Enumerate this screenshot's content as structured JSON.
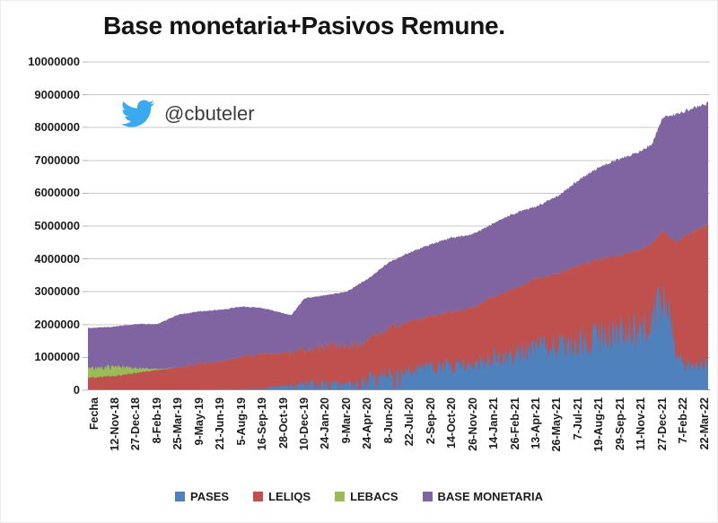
{
  "title": "Base monetaria+Pasivos Remune.",
  "watermark": {
    "icon": "twitter-bird-icon",
    "icon_color": "#3BA9EE",
    "handle": "@cbuteler"
  },
  "y_axis": {
    "labels": [
      "10000000",
      "9000000",
      "8000000",
      "7000000",
      "6000000",
      "5000000",
      "4000000",
      "3000000",
      "2000000",
      "1000000",
      "0"
    ],
    "min": 0,
    "max": 10000000,
    "step": 1000000
  },
  "x_axis": {
    "labels": [
      "Fecha",
      "12-Nov-18",
      "27-Dec-18",
      "8-Feb-19",
      "25-Mar-19",
      "9-May-19",
      "21-Jun-19",
      "5-Aug-19",
      "16-Sep-19",
      "28-Oct-19",
      "10-Dec-19",
      "24-Jan-20",
      "9-Mar-20",
      "24-Apr-20",
      "8-Jun-20",
      "22-Jul-20",
      "2-Sep-20",
      "14-Oct-20",
      "26-Nov-20",
      "14-Jan-21",
      "26-Feb-21",
      "13-Apr-21",
      "26-May-21",
      "7-Jul-21",
      "19-Aug-21",
      "29-Sep-21",
      "11-Nov-21",
      "27-Dec-21",
      "7-Feb-22",
      "22-Mar-22"
    ]
  },
  "legend": [
    {
      "label": "PASES",
      "color": "#4F81BD"
    },
    {
      "label": "LELIQS",
      "color": "#C0504D"
    },
    {
      "label": "LEBACS",
      "color": "#9BBB59"
    },
    {
      "label": "BASE MONETARIA",
      "color": "#8064A2"
    }
  ],
  "chart_data": {
    "type": "area",
    "stacked": true,
    "grid": "horizontal",
    "legend_position": "bottom",
    "ylim": [
      0,
      10000000
    ],
    "x": [
      "Fecha",
      "12-Nov-18",
      "27-Dec-18",
      "8-Feb-19",
      "25-Mar-19",
      "9-May-19",
      "21-Jun-19",
      "5-Aug-19",
      "16-Sep-19",
      "28-Oct-19",
      "10-Dec-19",
      "24-Jan-20",
      "9-Mar-20",
      "24-Apr-20",
      "8-Jun-20",
      "22-Jul-20",
      "2-Sep-20",
      "14-Oct-20",
      "26-Nov-20",
      "14-Jan-21",
      "26-Feb-21",
      "13-Apr-21",
      "26-May-21",
      "7-Jul-21",
      "19-Aug-21",
      "29-Sep-21",
      "11-Nov-21",
      "27-Dec-21",
      "7-Feb-22",
      "22-Mar-22"
    ],
    "series": [
      {
        "name": "PASES",
        "color": "#4F81BD",
        "values": [
          10000,
          10000,
          15000,
          15000,
          20000,
          20000,
          30000,
          30000,
          50000,
          150000,
          250000,
          300000,
          200000,
          450000,
          550000,
          600000,
          700000,
          750000,
          820000,
          1000000,
          1100000,
          1250000,
          1300000,
          1500000,
          1600000,
          1750000,
          1900000,
          2600000,
          800000,
          800000
        ]
      },
      {
        "name": "LELIQS",
        "color": "#C0504D",
        "values": [
          380000,
          420000,
          520000,
          600000,
          680000,
          780000,
          830000,
          1000000,
          1050000,
          1000000,
          1000000,
          1050000,
          1150000,
          1050000,
          1350000,
          1500000,
          1550000,
          1650000,
          1700000,
          1850000,
          2000000,
          2150000,
          2250000,
          2300000,
          2400000,
          2350000,
          2400000,
          2300000,
          3900000,
          4200000
        ]
      },
      {
        "name": "LEBACS",
        "color": "#9BBB59",
        "values": [
          300000,
          280000,
          150000,
          30000,
          0,
          0,
          0,
          0,
          0,
          0,
          0,
          0,
          0,
          0,
          0,
          0,
          0,
          0,
          0,
          0,
          0,
          0,
          0,
          0,
          0,
          0,
          0,
          0,
          0,
          0
        ]
      },
      {
        "name": "BASE MONETARIA",
        "color": "#8064A2",
        "values": [
          1210000,
          1230000,
          1330000,
          1370000,
          1600000,
          1600000,
          1590000,
          1520000,
          1400000,
          1200000,
          1550000,
          1550000,
          1650000,
          1900000,
          2000000,
          2100000,
          2200000,
          2250000,
          2230000,
          2250000,
          2300000,
          2200000,
          2350000,
          2600000,
          2800000,
          2950000,
          3000000,
          3400000,
          3800000,
          3700000
        ]
      }
    ],
    "extra_anchors": [
      {
        "u": 9.35,
        "pases": 200000,
        "leliqs": 950000,
        "lebacs": 0,
        "base": 1130000
      },
      {
        "u": 26.5,
        "pases": 2150000,
        "leliqs": 2300000,
        "lebacs": 0,
        "base": 3050000
      },
      {
        "u": 27.25,
        "pases": 2450000,
        "leliqs": 2250000,
        "lebacs": 0,
        "base": 3650000
      },
      {
        "u": 27.7,
        "pases": 1000000,
        "leliqs": 3500000,
        "lebacs": 0,
        "base": 3900000
      },
      {
        "u": 29.3,
        "pases": 850000,
        "leliqs": 4300000,
        "lebacs": 0,
        "base": 3650000
      }
    ]
  }
}
